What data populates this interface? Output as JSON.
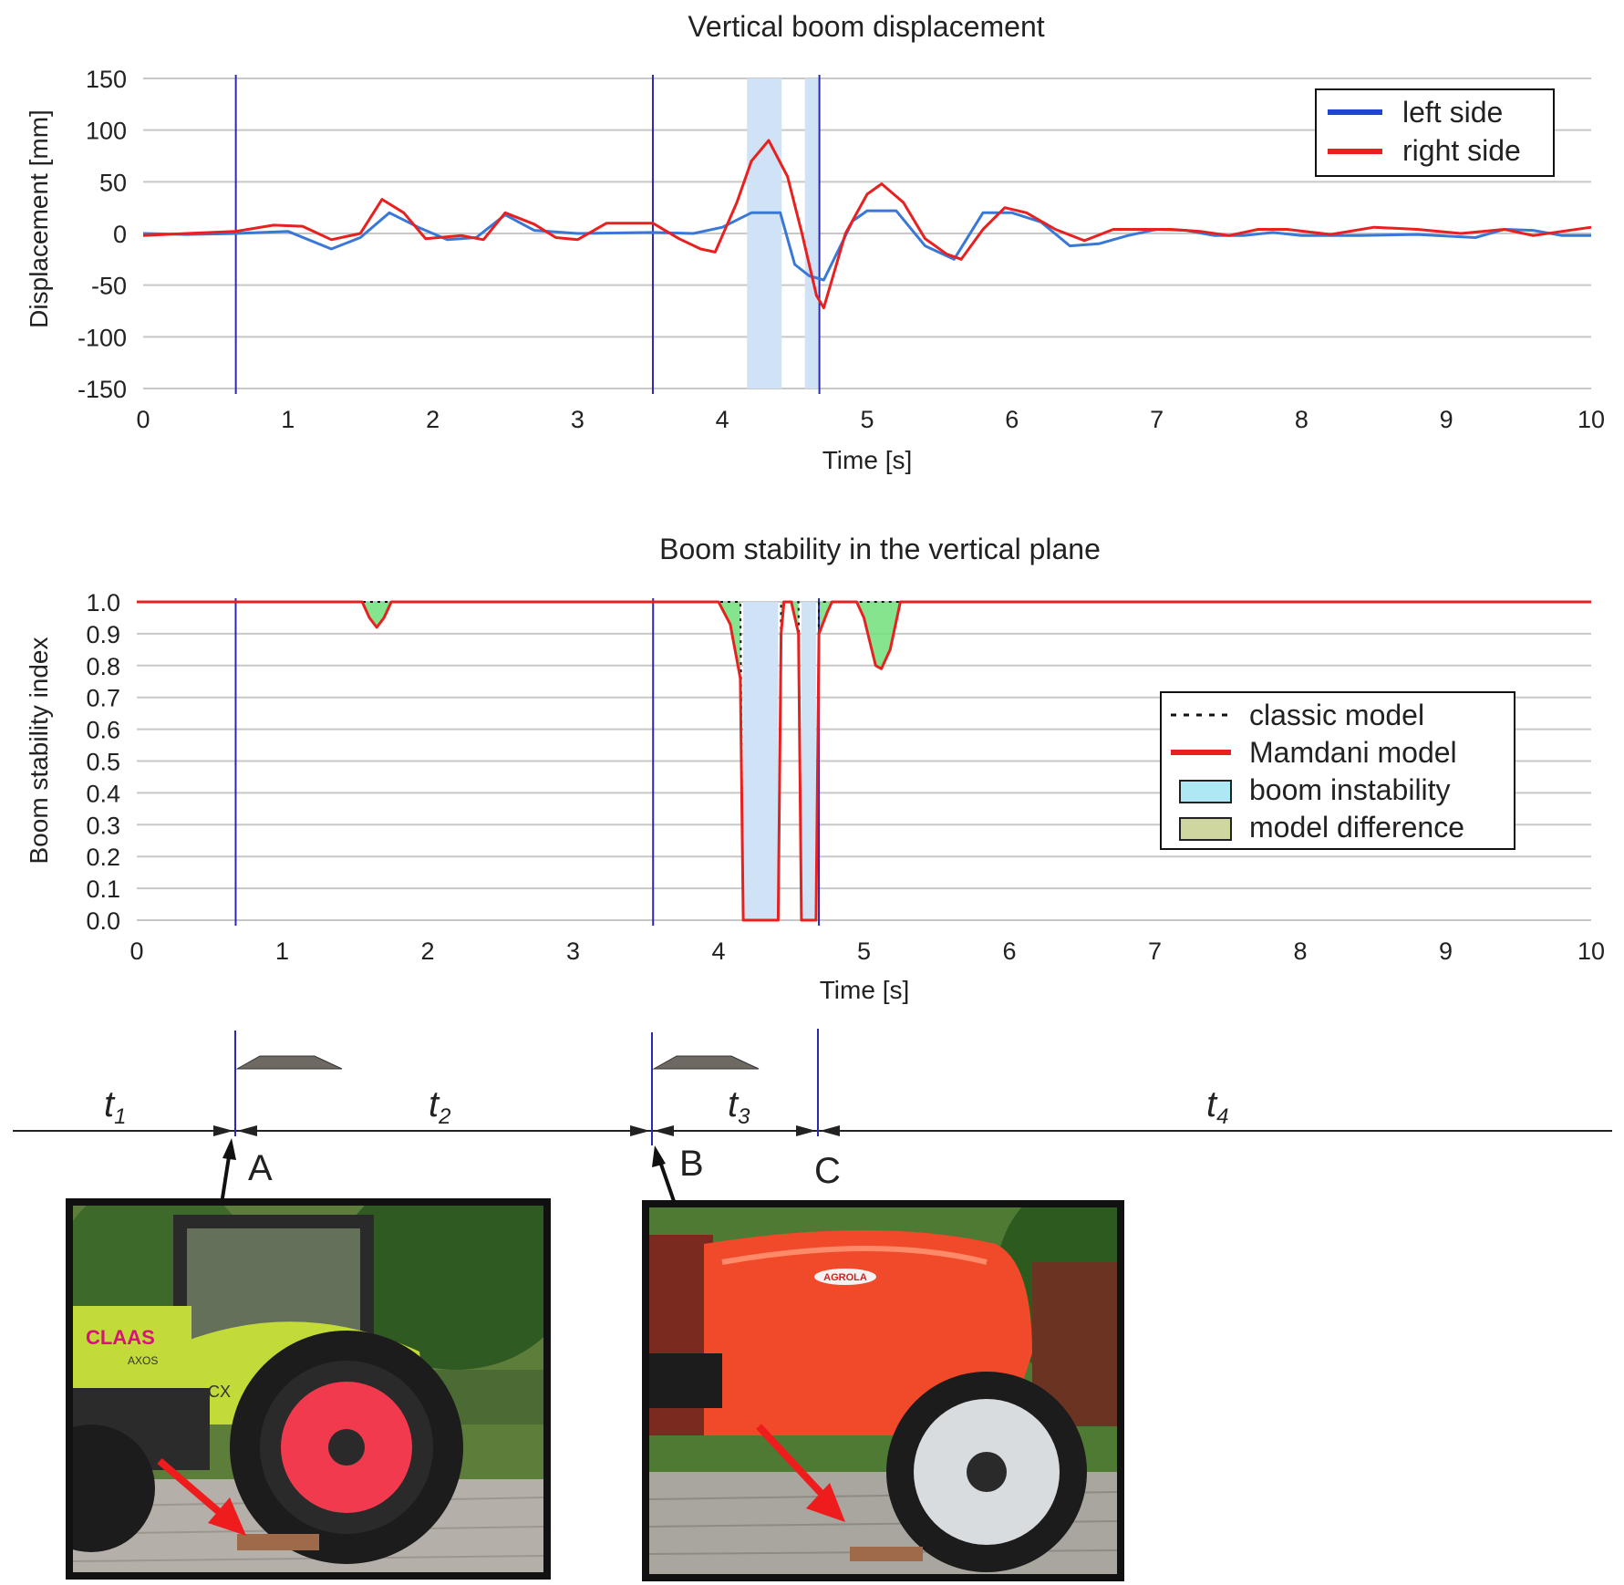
{
  "chart_data": [
    {
      "type": "line",
      "title": "Vertical boom displacement",
      "xlabel": "Time [s]",
      "ylabel": "Displacement [mm]",
      "xlim": [
        0,
        10
      ],
      "ylim": [
        -150,
        150
      ],
      "xticks": [
        "0",
        "1",
        "2",
        "3",
        "4",
        "5",
        "6",
        "7",
        "8",
        "9",
        "10"
      ],
      "yticks": [
        "150",
        "100",
        "50",
        "0",
        "-50",
        "-100",
        "-150"
      ],
      "grid": true,
      "legend_position": "top-right",
      "vlines": [
        0.64,
        3.52,
        4.67
      ],
      "shaded": [
        [
          4.17,
          4.41
        ],
        [
          4.57,
          4.67
        ]
      ],
      "series": [
        {
          "name": "left side",
          "color": "#3a78d8",
          "points": [
            [
              0,
              0
            ],
            [
              0.3,
              -1
            ],
            [
              0.64,
              0
            ],
            [
              1.0,
              2
            ],
            [
              1.3,
              -15
            ],
            [
              1.5,
              -4
            ],
            [
              1.7,
              20
            ],
            [
              1.9,
              6
            ],
            [
              2.1,
              -6
            ],
            [
              2.3,
              -4
            ],
            [
              2.5,
              18
            ],
            [
              2.7,
              3
            ],
            [
              3.0,
              0
            ],
            [
              3.52,
              1
            ],
            [
              3.8,
              0
            ],
            [
              4.0,
              6
            ],
            [
              4.2,
              20
            ],
            [
              4.4,
              20
            ],
            [
              4.5,
              -30
            ],
            [
              4.6,
              -41
            ],
            [
              4.7,
              -45
            ],
            [
              4.9,
              12
            ],
            [
              5.0,
              22
            ],
            [
              5.2,
              22
            ],
            [
              5.4,
              -12
            ],
            [
              5.6,
              -25
            ],
            [
              5.8,
              20
            ],
            [
              6.0,
              20
            ],
            [
              6.2,
              11
            ],
            [
              6.4,
              -12
            ],
            [
              6.6,
              -10
            ],
            [
              6.8,
              -2
            ],
            [
              7.0,
              4
            ],
            [
              7.2,
              3
            ],
            [
              7.4,
              -2
            ],
            [
              7.6,
              -2
            ],
            [
              7.8,
              1
            ],
            [
              8.0,
              -2
            ],
            [
              8.4,
              -2
            ],
            [
              8.8,
              -1
            ],
            [
              9.2,
              -4
            ],
            [
              9.4,
              4
            ],
            [
              9.6,
              3
            ],
            [
              9.8,
              -2
            ],
            [
              10,
              -2
            ]
          ]
        },
        {
          "name": "right side",
          "color": "#e82020",
          "points": [
            [
              0,
              -2
            ],
            [
              0.3,
              0
            ],
            [
              0.64,
              2
            ],
            [
              0.9,
              8
            ],
            [
              1.1,
              7
            ],
            [
              1.3,
              -6
            ],
            [
              1.5,
              0
            ],
            [
              1.65,
              33
            ],
            [
              1.8,
              20
            ],
            [
              1.95,
              -5
            ],
            [
              2.2,
              -2
            ],
            [
              2.35,
              -6
            ],
            [
              2.5,
              20
            ],
            [
              2.7,
              9
            ],
            [
              2.85,
              -4
            ],
            [
              3.0,
              -6
            ],
            [
              3.2,
              10
            ],
            [
              3.52,
              10
            ],
            [
              3.7,
              -5
            ],
            [
              3.85,
              -15
            ],
            [
              3.95,
              -18
            ],
            [
              4.1,
              30
            ],
            [
              4.2,
              70
            ],
            [
              4.32,
              90
            ],
            [
              4.45,
              55
            ],
            [
              4.55,
              0
            ],
            [
              4.65,
              -60
            ],
            [
              4.7,
              -72
            ],
            [
              4.85,
              0
            ],
            [
              5.0,
              38
            ],
            [
              5.1,
              48
            ],
            [
              5.25,
              30
            ],
            [
              5.4,
              -5
            ],
            [
              5.55,
              -20
            ],
            [
              5.65,
              -25
            ],
            [
              5.8,
              4
            ],
            [
              5.95,
              25
            ],
            [
              6.1,
              20
            ],
            [
              6.3,
              4
            ],
            [
              6.5,
              -7
            ],
            [
              6.7,
              4
            ],
            [
              6.9,
              4
            ],
            [
              7.1,
              4
            ],
            [
              7.3,
              2
            ],
            [
              7.5,
              -2
            ],
            [
              7.7,
              4
            ],
            [
              7.9,
              4
            ],
            [
              8.2,
              -1
            ],
            [
              8.5,
              6
            ],
            [
              8.8,
              4
            ],
            [
              9.1,
              0
            ],
            [
              9.4,
              4
            ],
            [
              9.6,
              -2
            ],
            [
              9.8,
              2
            ],
            [
              10,
              6
            ]
          ]
        }
      ]
    },
    {
      "type": "line",
      "title": "Boom stability in the vertical plane",
      "xlabel": "Time [s]",
      "ylabel": "Boom stability index",
      "xlim": [
        0,
        10
      ],
      "ylim": [
        0,
        1.0
      ],
      "xticks": [
        "0",
        "1",
        "2",
        "3",
        "4",
        "5",
        "6",
        "7",
        "8",
        "9",
        "10"
      ],
      "yticks": [
        "1.0",
        "0.9",
        "0.8",
        "0.7",
        "0.6",
        "0.5",
        "0.4",
        "0.3",
        "0.2",
        "0.1",
        "0.0"
      ],
      "grid": true,
      "legend_position": "right",
      "vlines": [
        0.68,
        3.55,
        4.69
      ],
      "shaded": [
        [
          4.17,
          4.41
        ],
        [
          4.57,
          4.67
        ]
      ],
      "series": [
        {
          "name": "classic model",
          "color": "#111111",
          "style": "dotted",
          "points": [
            [
              0,
              1
            ],
            [
              4.15,
              1
            ],
            [
              4.17,
              0
            ],
            [
              4.41,
              0
            ],
            [
              4.43,
              1
            ],
            [
              4.55,
              1
            ],
            [
              4.57,
              0
            ],
            [
              4.67,
              0
            ],
            [
              4.69,
              1
            ],
            [
              10,
              1
            ]
          ]
        },
        {
          "name": "Mamdani model",
          "color": "#e82020",
          "points": [
            [
              0,
              1
            ],
            [
              1.55,
              1
            ],
            [
              1.6,
              0.95
            ],
            [
              1.65,
              0.92
            ],
            [
              1.7,
              0.95
            ],
            [
              1.75,
              1
            ],
            [
              4.0,
              1
            ],
            [
              4.08,
              0.93
            ],
            [
              4.15,
              0.76
            ],
            [
              4.17,
              0
            ],
            [
              4.41,
              0
            ],
            [
              4.43,
              0.9
            ],
            [
              4.45,
              1
            ],
            [
              4.5,
              1
            ],
            [
              4.55,
              0.9
            ],
            [
              4.57,
              0
            ],
            [
              4.67,
              0
            ],
            [
              4.69,
              0.9
            ],
            [
              4.75,
              0.97
            ],
            [
              4.78,
              1
            ],
            [
              4.95,
              1
            ],
            [
              5.0,
              0.95
            ],
            [
              5.08,
              0.8
            ],
            [
              5.12,
              0.79
            ],
            [
              5.18,
              0.85
            ],
            [
              5.25,
              1
            ],
            [
              10,
              1
            ]
          ]
        }
      ],
      "legend": [
        {
          "name": "classic model",
          "color": "#111111",
          "kind": "dotted-line"
        },
        {
          "name": "Mamdani model",
          "color": "#e82020",
          "kind": "line"
        },
        {
          "name": "boom instability",
          "color": "#aee8f5",
          "kind": "box"
        },
        {
          "name": "model difference",
          "color": "#cfd6a0",
          "kind": "box"
        }
      ]
    }
  ],
  "timeline": {
    "segments": [
      "t1",
      "t2",
      "t3",
      "t4"
    ],
    "markers": [
      "A",
      "B",
      "C"
    ]
  },
  "photos": [
    {
      "description": "tractor crossing obstacle",
      "logo_text": "CLAAS",
      "model_text": "AXOS",
      "badge_text": "CX"
    },
    {
      "description": "sprayer crossing obstacle",
      "logo_text": "AGROLA"
    }
  ]
}
